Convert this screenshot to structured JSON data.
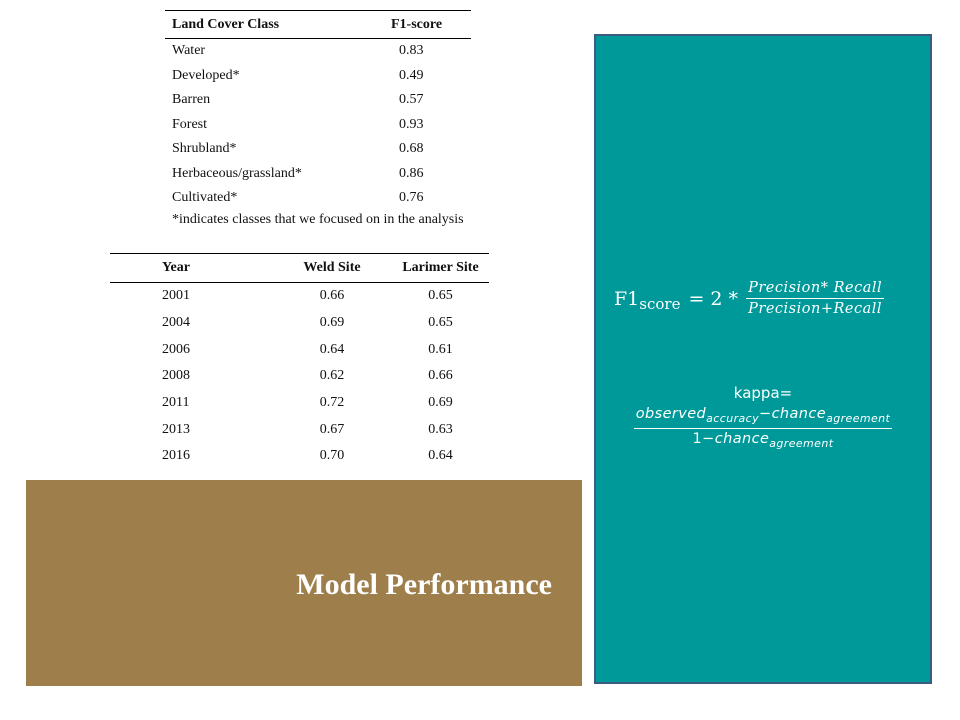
{
  "f1_table": {
    "headers": [
      "Land Cover Class",
      "F1-score"
    ],
    "rows": [
      {
        "cls": "Water",
        "score": "0.83"
      },
      {
        "cls": "Developed*",
        "score": "0.49"
      },
      {
        "cls": "Barren",
        "score": "0.57"
      },
      {
        "cls": "Forest",
        "score": "0.93"
      },
      {
        "cls": "Shrubland*",
        "score": "0.68"
      },
      {
        "cls": "Herbaceous/grassland*",
        "score": "0.86"
      },
      {
        "cls": "Cultivated*",
        "score": "0.76"
      }
    ],
    "note": "*indicates classes that we focused on in the analysis"
  },
  "kappa_table": {
    "headers": [
      "Year",
      "Weld Site",
      "Larimer Site"
    ],
    "rows": [
      {
        "year": "2001",
        "weld": "0.66",
        "larimer": "0.65"
      },
      {
        "year": "2004",
        "weld": "0.69",
        "larimer": "0.65"
      },
      {
        "year": "2006",
        "weld": "0.64",
        "larimer": "0.61"
      },
      {
        "year": "2008",
        "weld": "0.62",
        "larimer": "0.66"
      },
      {
        "year": "2011",
        "weld": "0.72",
        "larimer": "0.69"
      },
      {
        "year": "2013",
        "weld": "0.67",
        "larimer": "0.63"
      },
      {
        "year": "2016",
        "weld": "0.70",
        "larimer": "0.64"
      }
    ]
  },
  "title": "Model Performance",
  "formulas": {
    "f1": {
      "lhs": "F1",
      "lhs_sub": "score",
      "equals": "= 2 *",
      "numerator": "Precision* Recall",
      "denominator": "Precision+Recall"
    },
    "kappa": {
      "label": "kappa=",
      "num_a": "observed",
      "num_a_sub": "accuracy",
      "num_op": "−",
      "num_b": "chance",
      "num_b_sub": "agreement",
      "den_a": "1−",
      "den_b": "chance",
      "den_b_sub": "agreement"
    }
  },
  "colors": {
    "title_block": "#9e7f4b",
    "formula_panel": "#009999",
    "panel_border": "#3b5b82"
  }
}
